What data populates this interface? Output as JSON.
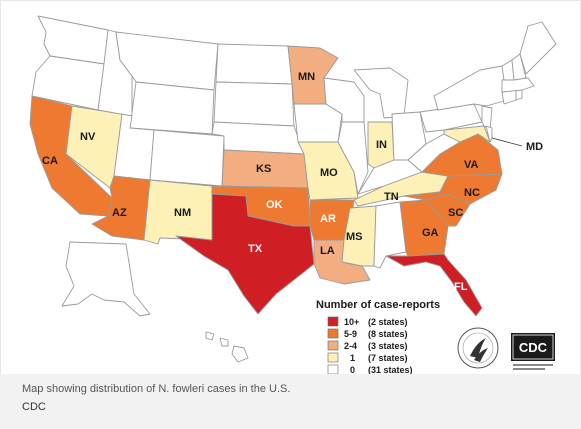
{
  "colors": {
    "tier_10plus": "#cf1f24",
    "tier_5_9": "#ee7a31",
    "tier_2_4": "#f2ae80",
    "tier_1": "#fdf1b8",
    "tier_0": "#ffffff",
    "border": "#9a9a9a"
  },
  "map": {
    "state_labels": [
      "CA",
      "NV",
      "AZ",
      "NM",
      "TX",
      "OK",
      "KS",
      "MN",
      "MO",
      "AR",
      "LA",
      "MS",
      "TN",
      "IN",
      "VA",
      "NC",
      "SC",
      "GA",
      "FL",
      "MD"
    ]
  },
  "legend": {
    "title": "Number of case-reports",
    "items": [
      {
        "range": "10+",
        "count": "(2 states)",
        "color": "#cf1f24"
      },
      {
        "range": "5-9",
        "count": "(8 states)",
        "color": "#ee7a31"
      },
      {
        "range": "2-4",
        "count": "(3 states)",
        "color": "#f2ae80"
      },
      {
        "range": "1",
        "count": "(7 states)",
        "color": "#fdf1b8"
      },
      {
        "range": "0",
        "count": "(31 states)",
        "color": "#ffffff"
      }
    ]
  },
  "logos": {
    "hhs": "hhs-eagle-seal",
    "cdc": "CDC"
  },
  "caption": {
    "text": "Map showing distribution of N. fowleri cases in the U.S.",
    "credit": "CDC"
  }
}
